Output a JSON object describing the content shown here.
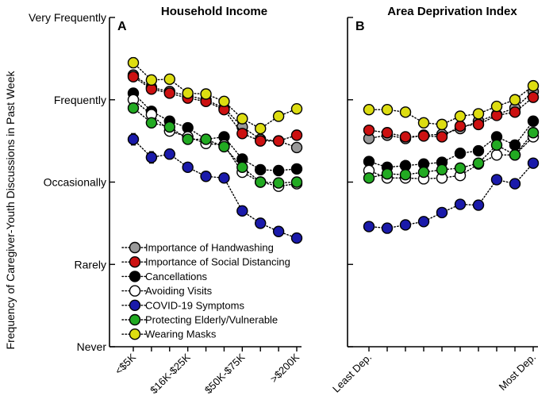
{
  "chart_data": [
    {
      "type": "line",
      "panel": "A",
      "title": "Household Income",
      "ylabel": "Frequency of Caregiver-Youth Discussions in Past Week",
      "y_tick_labels": [
        "Never",
        "Rarely",
        "Occasionally",
        "Frequently",
        "Very Frequently"
      ],
      "ylim": [
        0,
        4
      ],
      "x_tick_labels": [
        "<$5K",
        "$16K-$25K",
        "$50K-$75K",
        ">$200K"
      ],
      "x_tick_positions": [
        0,
        3,
        6,
        9
      ],
      "x_count": 10,
      "series": [
        {
          "name": "Importance of Handwashing",
          "color": "#999999",
          "values": [
            3.3,
            3.15,
            3.1,
            3.05,
            3.0,
            2.9,
            2.67,
            2.52,
            2.5,
            2.42
          ],
          "err": [
            0.05,
            0.05,
            0.05,
            0.04,
            0.04,
            0.04,
            0.04,
            0.04,
            0.03,
            0.03
          ]
        },
        {
          "name": "Importance of Social Distancing",
          "color": "#cc1111",
          "values": [
            3.28,
            3.13,
            3.08,
            3.02,
            2.98,
            2.88,
            2.59,
            2.5,
            2.5,
            2.57
          ],
          "err": [
            0.05,
            0.05,
            0.05,
            0.04,
            0.04,
            0.04,
            0.04,
            0.04,
            0.03,
            0.03
          ]
        },
        {
          "name": "Cancellations",
          "color": "#000000",
          "values": [
            3.08,
            2.86,
            2.74,
            2.66,
            2.52,
            2.55,
            2.28,
            2.15,
            2.14,
            2.16
          ],
          "err": [
            0.05,
            0.05,
            0.05,
            0.04,
            0.04,
            0.04,
            0.04,
            0.04,
            0.03,
            0.03
          ]
        },
        {
          "name": "Avoiding Visits",
          "color": "#ffffff",
          "values": [
            3.0,
            2.82,
            2.62,
            2.55,
            2.47,
            2.45,
            2.12,
            2.0,
            1.95,
            1.98
          ],
          "err": [
            0.05,
            0.05,
            0.05,
            0.04,
            0.04,
            0.04,
            0.04,
            0.04,
            0.03,
            0.03
          ]
        },
        {
          "name": "COVID-19 Symptoms",
          "color": "#1a1aaa",
          "values": [
            2.52,
            2.3,
            2.34,
            2.18,
            2.07,
            2.05,
            1.65,
            1.5,
            1.4,
            1.32
          ],
          "err": [
            0.07,
            0.07,
            0.06,
            0.05,
            0.04,
            0.04,
            0.04,
            0.04,
            0.03,
            0.03
          ]
        },
        {
          "name": "Protecting Elderly/Vulnerable",
          "color": "#22aa22",
          "values": [
            2.9,
            2.72,
            2.67,
            2.52,
            2.52,
            2.43,
            2.18,
            2.0,
            1.99,
            2.0
          ],
          "err": [
            0.05,
            0.05,
            0.05,
            0.04,
            0.04,
            0.04,
            0.04,
            0.04,
            0.03,
            0.03
          ]
        },
        {
          "name": "Wearing Masks",
          "color": "#dddd11",
          "values": [
            3.45,
            3.24,
            3.25,
            3.08,
            3.07,
            2.98,
            2.77,
            2.65,
            2.8,
            2.89
          ],
          "err": [
            0.06,
            0.06,
            0.06,
            0.05,
            0.05,
            0.04,
            0.04,
            0.04,
            0.03,
            0.03
          ]
        }
      ]
    },
    {
      "type": "line",
      "panel": "B",
      "title": "Area Deprivation Index",
      "y_tick_labels": [
        "Never",
        "Rarely",
        "Occasionally",
        "Frequently",
        "Very Frequently"
      ],
      "ylim": [
        0,
        4
      ],
      "x_tick_labels": [
        "Least Dep.",
        "Most Dep."
      ],
      "x_tick_positions": [
        0,
        9
      ],
      "x_count": 10,
      "series": [
        {
          "name": "Importance of Handwashing",
          "color": "#999999",
          "values": [
            2.53,
            2.57,
            2.53,
            2.57,
            2.58,
            2.65,
            2.74,
            2.82,
            2.9,
            3.1
          ],
          "err": [
            0.03,
            0.03,
            0.03,
            0.03,
            0.03,
            0.03,
            0.04,
            0.04,
            0.04,
            0.05
          ]
        },
        {
          "name": "Importance of Social Distancing",
          "color": "#cc1111",
          "values": [
            2.63,
            2.6,
            2.55,
            2.56,
            2.55,
            2.68,
            2.7,
            2.81,
            2.85,
            3.03
          ],
          "err": [
            0.03,
            0.03,
            0.03,
            0.03,
            0.03,
            0.03,
            0.04,
            0.04,
            0.04,
            0.05
          ]
        },
        {
          "name": "Cancellations",
          "color": "#000000",
          "values": [
            2.25,
            2.18,
            2.2,
            2.22,
            2.24,
            2.35,
            2.38,
            2.55,
            2.45,
            2.74
          ],
          "err": [
            0.03,
            0.03,
            0.03,
            0.03,
            0.03,
            0.03,
            0.04,
            0.04,
            0.04,
            0.05
          ]
        },
        {
          "name": "Avoiding Visits",
          "color": "#ffffff",
          "values": [
            2.14,
            2.05,
            2.05,
            2.04,
            2.05,
            2.08,
            2.22,
            2.33,
            2.33,
            2.55
          ],
          "err": [
            0.03,
            0.03,
            0.03,
            0.03,
            0.03,
            0.03,
            0.04,
            0.04,
            0.04,
            0.05
          ]
        },
        {
          "name": "COVID-19 Symptoms",
          "color": "#1a1aaa",
          "values": [
            1.46,
            1.44,
            1.48,
            1.52,
            1.63,
            1.73,
            1.72,
            2.03,
            1.98,
            2.23
          ],
          "err": [
            0.03,
            0.03,
            0.03,
            0.03,
            0.03,
            0.03,
            0.04,
            0.04,
            0.05,
            0.05
          ]
        },
        {
          "name": "Protecting Elderly/Vulnerable",
          "color": "#22aa22",
          "values": [
            2.05,
            2.1,
            2.09,
            2.12,
            2.15,
            2.17,
            2.23,
            2.45,
            2.33,
            2.6
          ],
          "err": [
            0.03,
            0.03,
            0.03,
            0.03,
            0.03,
            0.03,
            0.04,
            0.04,
            0.04,
            0.05
          ]
        },
        {
          "name": "Wearing Masks",
          "color": "#dddd11",
          "values": [
            2.88,
            2.88,
            2.85,
            2.72,
            2.7,
            2.8,
            2.83,
            2.92,
            3.0,
            3.17
          ],
          "err": [
            0.03,
            0.03,
            0.03,
            0.03,
            0.03,
            0.03,
            0.04,
            0.04,
            0.04,
            0.05
          ]
        }
      ]
    }
  ]
}
